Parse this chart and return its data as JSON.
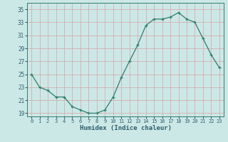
{
  "x": [
    0,
    1,
    2,
    3,
    4,
    5,
    6,
    7,
    8,
    9,
    10,
    11,
    12,
    13,
    14,
    15,
    16,
    17,
    18,
    19,
    20,
    21,
    22,
    23
  ],
  "y": [
    25,
    23,
    22.5,
    21.5,
    21.5,
    20,
    19.5,
    19,
    19,
    19.5,
    21.5,
    24.5,
    27,
    29.5,
    32.5,
    33.5,
    33.5,
    33.8,
    34.5,
    33.5,
    33,
    30.5,
    28,
    26
  ],
  "xlabel": "Humidex (Indice chaleur)",
  "ylabel": "",
  "xlim": [
    -0.5,
    23.5
  ],
  "ylim": [
    18.5,
    36
  ],
  "yticks": [
    19,
    21,
    23,
    25,
    27,
    29,
    31,
    33,
    35
  ],
  "xticks": [
    0,
    1,
    2,
    3,
    4,
    5,
    6,
    7,
    8,
    9,
    10,
    11,
    12,
    13,
    14,
    15,
    16,
    17,
    18,
    19,
    20,
    21,
    22,
    23
  ],
  "line_color": "#2e7d6e",
  "marker": "+",
  "bg_color": "#cce8e6",
  "grid_color": "#b8d4d2",
  "label_color": "#2e5e6e",
  "tick_color": "#2e5e6e"
}
